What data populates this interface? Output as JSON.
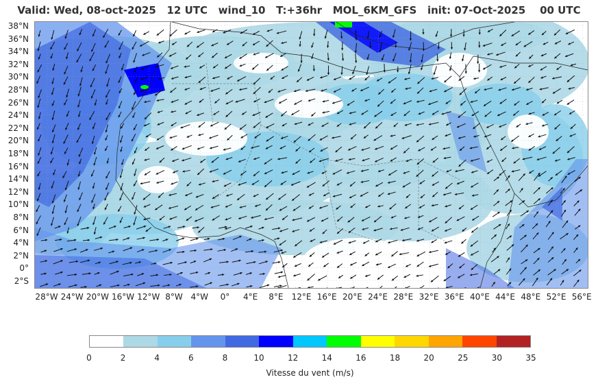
{
  "title": "Valid: Wed, 08-oct-2025   12 UTC   wind_10   T:+36hr   MOL_6KM_GFS   init: 07-Oct-2025    00 UTC",
  "map": {
    "lat_labels": [
      "38°N",
      "36°N",
      "34°N",
      "32°N",
      "30°N",
      "28°N",
      "26°N",
      "24°N",
      "22°N",
      "20°N",
      "18°N",
      "16°N",
      "14°N",
      "12°N",
      "10°N",
      "8°N",
      "6°N",
      "4°N",
      "2°N",
      "0°",
      "2°S"
    ],
    "lon_labels": [
      "28°W",
      "24°W",
      "20°W",
      "16°W",
      "12°W",
      "8°W",
      "4°W",
      "0°",
      "4°E",
      "8°E",
      "12°E",
      "16°E",
      "20°E",
      "24°E",
      "28°E",
      "32°E",
      "36°E",
      "40°E",
      "44°E",
      "48°E",
      "52°E",
      "56°E"
    ]
  },
  "legend": {
    "title": "Vitesse du vent (m/s)",
    "ticks": [
      "0",
      "2",
      "4",
      "6",
      "8",
      "10",
      "12",
      "14",
      "16",
      "18",
      "20",
      "25",
      "30",
      "35"
    ],
    "colors": [
      "#ffffff",
      "#add8e6",
      "#87ceeb",
      "#6495ed",
      "#4169e1",
      "#0000ff",
      "#00c8ff",
      "#00ff00",
      "#ffff00",
      "#ffd700",
      "#ffa500",
      "#ff4500",
      "#b22222"
    ]
  }
}
